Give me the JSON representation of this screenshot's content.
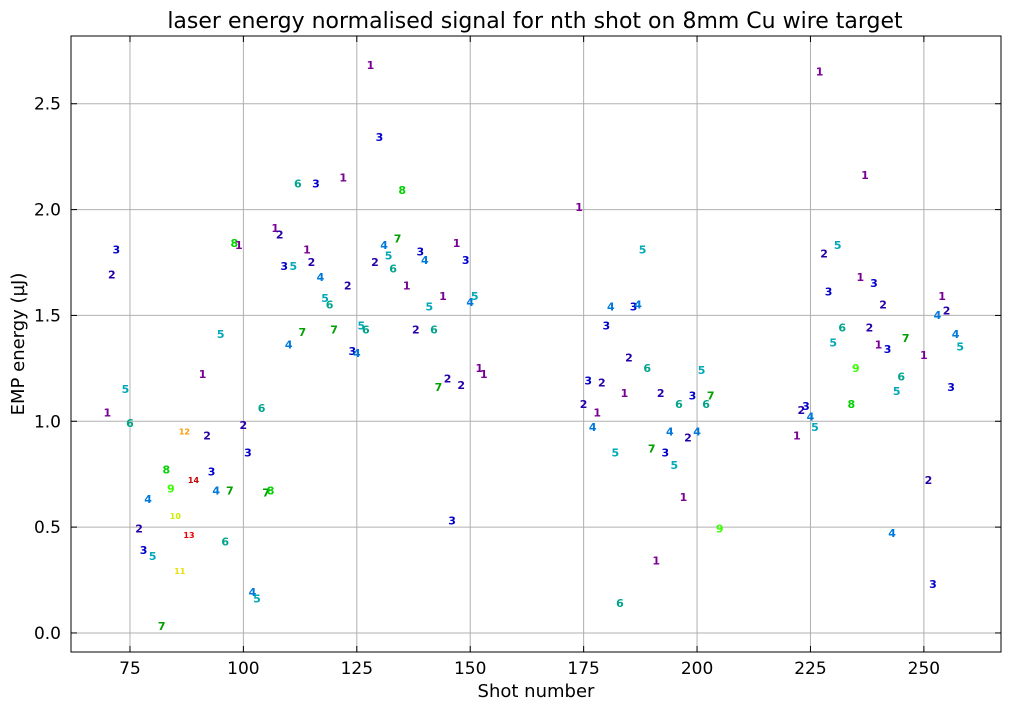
{
  "chart_data": {
    "type": "scatter",
    "title": "laser energy normalised signal for nth shot on 8mm Cu wire target",
    "xlabel": "Shot number",
    "ylabel": "EMP energy (µJ)",
    "xlim": [
      62,
      267
    ],
    "ylim": [
      -0.09,
      2.82
    ],
    "xticks": [
      75,
      100,
      125,
      150,
      175,
      200,
      225,
      250
    ],
    "yticks": [
      0.0,
      0.5,
      1.0,
      1.5,
      2.0,
      2.5
    ],
    "xtick_labels": [
      "75",
      "100",
      "125",
      "150",
      "175",
      "200",
      "225",
      "250"
    ],
    "ytick_labels": [
      "0.0",
      "0.5",
      "1.0",
      "1.5",
      "2.0",
      "2.5"
    ],
    "grid": true,
    "marker_colors": {
      "1": "#7a0095",
      "2": "#2800a8",
      "3": "#0000cc",
      "4": "#0079dd",
      "5": "#00a8b8",
      "6": "#00a58a",
      "7": "#00a000",
      "8": "#00d200",
      "9": "#38ff00",
      "10": "#cdf000",
      "11": "#e6e000",
      "12": "#ff9900",
      "13": "#ee0000",
      "14": "#cc0000"
    },
    "points": [
      {
        "x": 70,
        "y": 1.04,
        "label": "1"
      },
      {
        "x": 71,
        "y": 1.69,
        "label": "2"
      },
      {
        "x": 72,
        "y": 1.81,
        "label": "3"
      },
      {
        "x": 74,
        "y": 1.15,
        "label": "5"
      },
      {
        "x": 75,
        "y": 0.99,
        "label": "6"
      },
      {
        "x": 77,
        "y": 0.49,
        "label": "2"
      },
      {
        "x": 78,
        "y": 0.39,
        "label": "3"
      },
      {
        "x": 79,
        "y": 0.63,
        "label": "4"
      },
      {
        "x": 80,
        "y": 0.36,
        "label": "5"
      },
      {
        "x": 82,
        "y": 0.03,
        "label": "7"
      },
      {
        "x": 83,
        "y": 0.77,
        "label": "8"
      },
      {
        "x": 84,
        "y": 0.68,
        "label": "9"
      },
      {
        "x": 85,
        "y": 0.55,
        "label": "10"
      },
      {
        "x": 86,
        "y": 0.29,
        "label": "11"
      },
      {
        "x": 87,
        "y": 0.95,
        "label": "12"
      },
      {
        "x": 88,
        "y": 0.46,
        "label": "13"
      },
      {
        "x": 89,
        "y": 0.72,
        "label": "14"
      },
      {
        "x": 91,
        "y": 1.22,
        "label": "1"
      },
      {
        "x": 92,
        "y": 0.93,
        "label": "2"
      },
      {
        "x": 93,
        "y": 0.76,
        "label": "3"
      },
      {
        "x": 94,
        "y": 0.67,
        "label": "4"
      },
      {
        "x": 95,
        "y": 1.41,
        "label": "5"
      },
      {
        "x": 96,
        "y": 0.43,
        "label": "6"
      },
      {
        "x": 97,
        "y": 0.67,
        "label": "7"
      },
      {
        "x": 98,
        "y": 1.84,
        "label": "8"
      },
      {
        "x": 99,
        "y": 1.83,
        "label": "1"
      },
      {
        "x": 100,
        "y": 0.98,
        "label": "2"
      },
      {
        "x": 101,
        "y": 0.85,
        "label": "3"
      },
      {
        "x": 102,
        "y": 0.19,
        "label": "4"
      },
      {
        "x": 103,
        "y": 0.16,
        "label": "5"
      },
      {
        "x": 104,
        "y": 1.06,
        "label": "6"
      },
      {
        "x": 105,
        "y": 0.66,
        "label": "7"
      },
      {
        "x": 106,
        "y": 0.67,
        "label": "8"
      },
      {
        "x": 107,
        "y": 1.91,
        "label": "1"
      },
      {
        "x": 108,
        "y": 1.88,
        "label": "2"
      },
      {
        "x": 109,
        "y": 1.73,
        "label": "3"
      },
      {
        "x": 110,
        "y": 1.36,
        "label": "4"
      },
      {
        "x": 111,
        "y": 1.73,
        "label": "5"
      },
      {
        "x": 112,
        "y": 2.12,
        "label": "6"
      },
      {
        "x": 113,
        "y": 1.42,
        "label": "7"
      },
      {
        "x": 114,
        "y": 1.81,
        "label": "1"
      },
      {
        "x": 115,
        "y": 1.75,
        "label": "2"
      },
      {
        "x": 116,
        "y": 2.12,
        "label": "3"
      },
      {
        "x": 117,
        "y": 1.68,
        "label": "4"
      },
      {
        "x": 118,
        "y": 1.58,
        "label": "5"
      },
      {
        "x": 119,
        "y": 1.55,
        "label": "6"
      },
      {
        "x": 120,
        "y": 1.43,
        "label": "7"
      },
      {
        "x": 122,
        "y": 2.15,
        "label": "1"
      },
      {
        "x": 123,
        "y": 1.64,
        "label": "2"
      },
      {
        "x": 124,
        "y": 1.33,
        "label": "3"
      },
      {
        "x": 125,
        "y": 1.32,
        "label": "4"
      },
      {
        "x": 126,
        "y": 1.45,
        "label": "5"
      },
      {
        "x": 127,
        "y": 1.43,
        "label": "6"
      },
      {
        "x": 128,
        "y": 2.68,
        "label": "1"
      },
      {
        "x": 129,
        "y": 1.75,
        "label": "2"
      },
      {
        "x": 130,
        "y": 2.34,
        "label": "3"
      },
      {
        "x": 131,
        "y": 1.83,
        "label": "4"
      },
      {
        "x": 132,
        "y": 1.78,
        "label": "5"
      },
      {
        "x": 133,
        "y": 1.72,
        "label": "6"
      },
      {
        "x": 134,
        "y": 1.86,
        "label": "7"
      },
      {
        "x": 135,
        "y": 2.09,
        "label": "8"
      },
      {
        "x": 136,
        "y": 1.64,
        "label": "1"
      },
      {
        "x": 138,
        "y": 1.43,
        "label": "2"
      },
      {
        "x": 139,
        "y": 1.8,
        "label": "3"
      },
      {
        "x": 140,
        "y": 1.76,
        "label": "4"
      },
      {
        "x": 141,
        "y": 1.54,
        "label": "5"
      },
      {
        "x": 142,
        "y": 1.43,
        "label": "6"
      },
      {
        "x": 143,
        "y": 1.16,
        "label": "7"
      },
      {
        "x": 144,
        "y": 1.59,
        "label": "1"
      },
      {
        "x": 145,
        "y": 1.2,
        "label": "2"
      },
      {
        "x": 146,
        "y": 0.53,
        "label": "3"
      },
      {
        "x": 147,
        "y": 1.84,
        "label": "1"
      },
      {
        "x": 148,
        "y": 1.17,
        "label": "2"
      },
      {
        "x": 149,
        "y": 1.76,
        "label": "3"
      },
      {
        "x": 150,
        "y": 1.56,
        "label": "4"
      },
      {
        "x": 151,
        "y": 1.59,
        "label": "5"
      },
      {
        "x": 152,
        "y": 1.25,
        "label": "1"
      },
      {
        "x": 153,
        "y": 1.22,
        "label": "1"
      },
      {
        "x": 174,
        "y": 2.01,
        "label": "1"
      },
      {
        "x": 175,
        "y": 1.08,
        "label": "2"
      },
      {
        "x": 176,
        "y": 1.19,
        "label": "3"
      },
      {
        "x": 177,
        "y": 0.97,
        "label": "4"
      },
      {
        "x": 178,
        "y": 1.04,
        "label": "1"
      },
      {
        "x": 179,
        "y": 1.18,
        "label": "2"
      },
      {
        "x": 180,
        "y": 1.45,
        "label": "3"
      },
      {
        "x": 181,
        "y": 1.54,
        "label": "4"
      },
      {
        "x": 182,
        "y": 0.85,
        "label": "5"
      },
      {
        "x": 183,
        "y": 0.14,
        "label": "6"
      },
      {
        "x": 184,
        "y": 1.13,
        "label": "1"
      },
      {
        "x": 185,
        "y": 1.3,
        "label": "2"
      },
      {
        "x": 186,
        "y": 1.54,
        "label": "3"
      },
      {
        "x": 187,
        "y": 1.55,
        "label": "4"
      },
      {
        "x": 188,
        "y": 1.81,
        "label": "5"
      },
      {
        "x": 189,
        "y": 1.25,
        "label": "6"
      },
      {
        "x": 190,
        "y": 0.87,
        "label": "7"
      },
      {
        "x": 191,
        "y": 0.34,
        "label": "1"
      },
      {
        "x": 192,
        "y": 1.13,
        "label": "2"
      },
      {
        "x": 193,
        "y": 0.85,
        "label": "3"
      },
      {
        "x": 194,
        "y": 0.95,
        "label": "4"
      },
      {
        "x": 195,
        "y": 0.79,
        "label": "5"
      },
      {
        "x": 196,
        "y": 1.08,
        "label": "6"
      },
      {
        "x": 197,
        "y": 0.64,
        "label": "1"
      },
      {
        "x": 198,
        "y": 0.92,
        "label": "2"
      },
      {
        "x": 199,
        "y": 1.12,
        "label": "3"
      },
      {
        "x": 200,
        "y": 0.95,
        "label": "4"
      },
      {
        "x": 201,
        "y": 1.24,
        "label": "5"
      },
      {
        "x": 202,
        "y": 1.08,
        "label": "6"
      },
      {
        "x": 203,
        "y": 1.12,
        "label": "7"
      },
      {
        "x": 205,
        "y": 0.49,
        "label": "9"
      },
      {
        "x": 222,
        "y": 0.93,
        "label": "1"
      },
      {
        "x": 223,
        "y": 1.05,
        "label": "2"
      },
      {
        "x": 224,
        "y": 1.07,
        "label": "3"
      },
      {
        "x": 225,
        "y": 1.02,
        "label": "4"
      },
      {
        "x": 226,
        "y": 0.97,
        "label": "5"
      },
      {
        "x": 227,
        "y": 2.65,
        "label": "1"
      },
      {
        "x": 228,
        "y": 1.79,
        "label": "2"
      },
      {
        "x": 229,
        "y": 1.61,
        "label": "3"
      },
      {
        "x": 230,
        "y": 1.37,
        "label": "5"
      },
      {
        "x": 231,
        "y": 1.83,
        "label": "5"
      },
      {
        "x": 232,
        "y": 1.44,
        "label": "6"
      },
      {
        "x": 234,
        "y": 1.08,
        "label": "8"
      },
      {
        "x": 235,
        "y": 1.25,
        "label": "9"
      },
      {
        "x": 236,
        "y": 1.68,
        "label": "1"
      },
      {
        "x": 237,
        "y": 2.16,
        "label": "1"
      },
      {
        "x": 238,
        "y": 1.44,
        "label": "2"
      },
      {
        "x": 239,
        "y": 1.65,
        "label": "3"
      },
      {
        "x": 240,
        "y": 1.36,
        "label": "1"
      },
      {
        "x": 241,
        "y": 1.55,
        "label": "2"
      },
      {
        "x": 242,
        "y": 1.34,
        "label": "3"
      },
      {
        "x": 243,
        "y": 0.47,
        "label": "4"
      },
      {
        "x": 244,
        "y": 1.14,
        "label": "5"
      },
      {
        "x": 245,
        "y": 1.21,
        "label": "6"
      },
      {
        "x": 246,
        "y": 1.39,
        "label": "7"
      },
      {
        "x": 250,
        "y": 1.31,
        "label": "1"
      },
      {
        "x": 251,
        "y": 0.72,
        "label": "2"
      },
      {
        "x": 252,
        "y": 0.23,
        "label": "3"
      },
      {
        "x": 253,
        "y": 1.5,
        "label": "4"
      },
      {
        "x": 254,
        "y": 1.59,
        "label": "1"
      },
      {
        "x": 255,
        "y": 1.52,
        "label": "2"
      },
      {
        "x": 256,
        "y": 1.16,
        "label": "3"
      },
      {
        "x": 257,
        "y": 1.41,
        "label": "4"
      },
      {
        "x": 258,
        "y": 1.35,
        "label": "5"
      }
    ]
  }
}
